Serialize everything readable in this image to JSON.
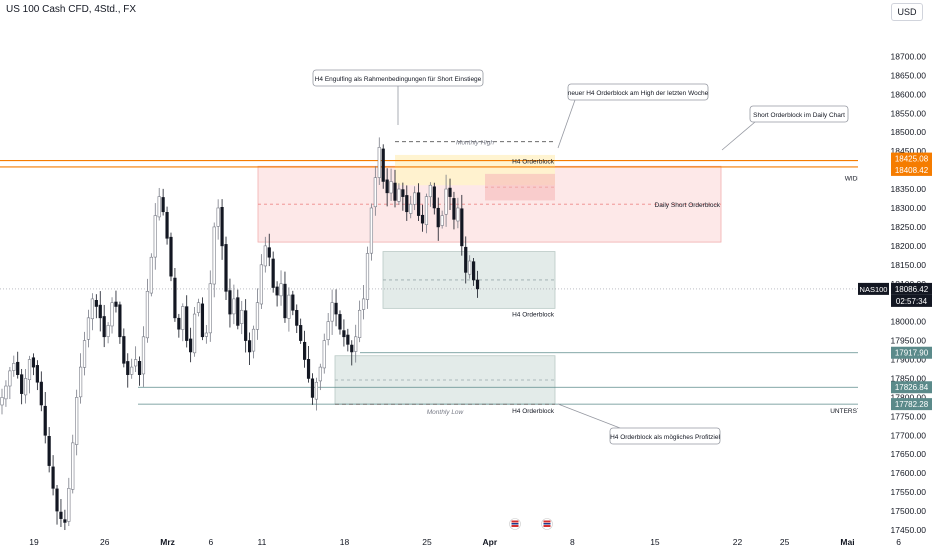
{
  "header": {
    "symbol_title": "US 100 Cash CFD, 4Std., FX",
    "currency": "USD"
  },
  "colors": {
    "up": "#787b86",
    "down": "#131722",
    "resistance": "#f57c00",
    "red_zone": "#f7a9a9",
    "gray_zone": "#b2c4bf",
    "yellow_zone": "#fde9a8",
    "support_label": "#5b8a8a"
  },
  "chart_data": {
    "type": "candlestick",
    "ylim": [
      17450,
      18750
    ],
    "y_ticks": [
      18700,
      18650,
      18600,
      18550,
      18500,
      18450,
      18400,
      18350,
      18300,
      18250,
      18200,
      18150,
      18100,
      18050,
      18000,
      17950,
      17900,
      17850,
      17800,
      17750,
      17700,
      17650,
      17600,
      17550,
      17500,
      17450
    ],
    "x_ticks": [
      {
        "label": "19",
        "idx": 0
      },
      {
        "label": "26",
        "idx": 18
      },
      {
        "label": "Mrz",
        "idx": 34
      },
      {
        "label": "6",
        "idx": 45
      },
      {
        "label": "11",
        "idx": 58
      },
      {
        "label": "18",
        "idx": 79
      },
      {
        "label": "25",
        "idx": 100
      },
      {
        "label": "Apr",
        "idx": 116
      },
      {
        "label": "8",
        "idx": 137
      },
      {
        "label": "15",
        "idx": 158
      },
      {
        "label": "22",
        "idx": 179
      },
      {
        "label": "25",
        "idx": 191
      },
      {
        "label": "Mai",
        "idx": 207
      },
      {
        "label": "6",
        "idx": 220
      }
    ],
    "closes": [
      17800,
      17830,
      17870,
      17890,
      17860,
      17810,
      17850,
      17900,
      17880,
      17840,
      17780,
      17700,
      17620,
      17560,
      17500,
      17480,
      17470,
      17560,
      17680,
      17800,
      17880,
      17950,
      18010,
      18060,
      18040,
      18010,
      17960,
      17990,
      18050,
      18040,
      17960,
      17890,
      17860,
      17880,
      17900,
      17860,
      17960,
      18080,
      18170,
      18280,
      18330,
      18290,
      18220,
      18120,
      18010,
      17980,
      18040,
      17950,
      17920,
      18020,
      18050,
      17960,
      17970,
      18100,
      18250,
      18300,
      18200,
      18080,
      18020,
      18060,
      17990,
      18030,
      17950,
      17920,
      17980,
      18050,
      18150,
      18200,
      18170,
      18090,
      18070,
      18100,
      18010,
      18070,
      18030,
      17990,
      17950,
      17900,
      17850,
      17800,
      17840,
      17880,
      17950,
      18000,
      18050,
      18020,
      17980,
      17960,
      17940,
      17920,
      17960,
      18030,
      18060,
      18180,
      18300,
      18380,
      18460,
      18370,
      18340,
      18370,
      18320,
      18350,
      18330,
      18290,
      18310,
      18340,
      18280,
      18260,
      18330,
      18360,
      18300,
      18250,
      18280,
      18350,
      18330,
      18270,
      18300,
      18200,
      18130,
      18160,
      18110,
      18086.42
    ],
    "price_labels": [
      {
        "text": "18425.08",
        "value": 18425.08,
        "color": "#f57c00"
      },
      {
        "text": "18408.42",
        "value": 18408.42,
        "color": "#f57c00"
      },
      {
        "text": "18086.42",
        "value": 18086.42,
        "color": "#131722"
      },
      {
        "text": "17917.90",
        "value": 17917.9,
        "color": "#5b8a8a"
      },
      {
        "text": "17826.84",
        "value": 17826.84,
        "color": "#5b8a8a"
      },
      {
        "text": "17782.28",
        "value": 17782.28,
        "color": "#5b8a8a"
      }
    ],
    "countdown": "02:57:34",
    "symbol_tag": "NAS100",
    "labels": {
      "monthly_high": "Monthly High",
      "monthly_low": "Monthly Low",
      "h4_ob_top": "H4 Orderblock",
      "h4_ob_mid": "H4 Orderblock",
      "h4_ob_bottom": "H4 Orderblock",
      "daily_short_ob": "Daily Short Orderblock",
      "widerstand": "WIDERSTAND",
      "unterstuetzung": "UNTERSTÜTZUNG"
    },
    "callouts": {
      "engulfing": "H4 Engulfing als Rahmenbedingungen für Short Einstiege",
      "new_h4_ob": "neuer H4 Orderblock am High der letzten Woche",
      "short_ob_daily": "Short Orderblock im Daily Chart",
      "profit_target": "H4 Orderblock als mögliches Profitziel"
    }
  }
}
